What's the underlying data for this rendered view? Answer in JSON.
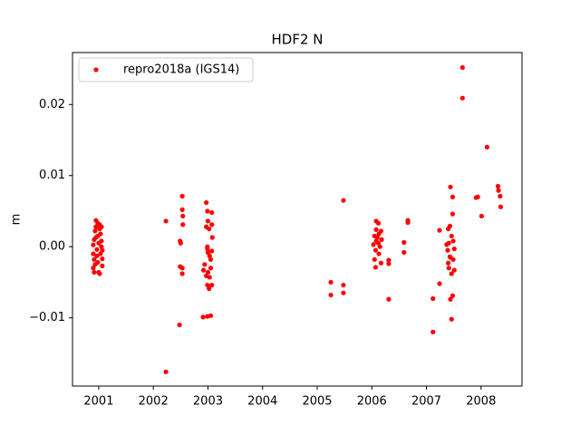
{
  "chart_data": {
    "type": "scatter",
    "title": "HDF2 N",
    "y_label": "m",
    "series": [
      {
        "name": "repro2018a (IGS14)",
        "color": "#ff0000",
        "x": [
          2000.9,
          2000.9,
          2000.917,
          2000.917,
          2000.9,
          2000.934,
          2000.934,
          2000.95,
          2000.95,
          2000.95,
          2000.967,
          2000.967,
          2000.983,
          2000.983,
          2001.0,
          2001.0,
          2001.017,
          2001.017,
          2001.033,
          2001.033,
          2001.05,
          2001.05,
          2001.05,
          2001.066,
          2001.066,
          2001.066,
          2001.017,
          2000.983,
          2000.917,
          2002.23,
          2002.23,
          2002.48,
          2002.49,
          2002.5,
          2002.49,
          2002.53,
          2002.53,
          2002.53,
          2002.54,
          2002.54,
          2002.53,
          2002.97,
          2002.99,
          2002.94,
          2002.92,
          2002.97,
          2003.0,
          2003.02,
          2002.99,
          2003.0,
          2003.03,
          2003.0,
          2003.03,
          2003.05,
          2003.07,
          2003.07,
          2003.08,
          2002.99,
          2003.02,
          2003.07,
          2002.91,
          2002.99,
          2003.05,
          2003.05,
          2002.97,
          2002.99,
          2003.07,
          2005.25,
          2005.25,
          2005.48,
          2005.48,
          2005.48,
          2006.08,
          2006.08,
          2006.07,
          2006.05,
          2006.1,
          2006.12,
          2006.15,
          2006.07,
          2006.13,
          2006.05,
          2006.17,
          2006.13,
          2006.08,
          2006.17,
          2006.12,
          2006.03,
          2006.18,
          2006.31,
          2006.31,
          2006.31,
          2006.59,
          2006.59,
          2006.66,
          2006.66,
          2007.12,
          2007.12,
          2007.24,
          2007.24,
          2007.37,
          2007.39,
          2007.4,
          2007.4,
          2007.41,
          2007.41,
          2007.43,
          2007.43,
          2007.44,
          2007.44,
          2007.46,
          2007.46,
          2007.46,
          2007.48,
          2007.48,
          2007.48,
          2007.49,
          2007.49,
          2007.51,
          2007.51,
          2007.44,
          2007.66,
          2007.66,
          2007.91,
          2007.94,
          2008.01,
          2008.11,
          2008.31,
          2008.32,
          2008.35,
          2008.36
        ],
        "values": [
          0.00025,
          -0.001,
          0.001,
          -0.0018,
          -0.003,
          -0.0025,
          0.0022,
          0.0037,
          0.0028,
          0.0013,
          -0.0004,
          -0.0013,
          0.0015,
          -0.0022,
          -0.0036,
          0.0005,
          0.0025,
          0.0031,
          0.0018,
          -0.001,
          0,
          0.0008,
          0.0028,
          -0.0005,
          -0.0017,
          -0.0027,
          -0.0038,
          0.0033,
          -0.0036,
          0.0036,
          -0.0176,
          -0.011,
          0.0008,
          0.0005,
          -0.0028,
          -0.003,
          0.0071,
          0.0052,
          0.0043,
          0.0031,
          -0.0038,
          0.0062,
          0.005,
          -0.0025,
          -0.0033,
          0.0028,
          0.0036,
          0.0025,
          0,
          -0.0008,
          -0.0013,
          -0.0036,
          -0.0043,
          -0.0018,
          0.0048,
          0.0031,
          0.0013,
          -0.0054,
          -0.0059,
          -0.0054,
          -0.0099,
          -0.0098,
          -0.0097,
          -0.003,
          -0.0041,
          -0.0003,
          -0.0006,
          -0.005,
          -0.0068,
          0.0065,
          -0.0054,
          -0.0065,
          0.0036,
          0.0024,
          -0.0029,
          0.0015,
          0.0013,
          0.0005,
          0,
          -0.0005,
          -0.001,
          -0.0018,
          0.0022,
          0.0018,
          0.0008,
          -0.0023,
          0.0033,
          0.0003,
          0.001,
          -0.0019,
          -0.0024,
          -0.0074,
          0.0006,
          -0.0008,
          0.0037,
          0.0034,
          -0.012,
          -0.0073,
          -0.0052,
          0.0023,
          0.0003,
          -0.0005,
          0.0025,
          -0.0023,
          0.0005,
          -0.003,
          0.0029,
          -0.0014,
          0.0084,
          -0.0074,
          0.0015,
          -0.0038,
          -0.0102,
          0.007,
          0.0046,
          -0.0069,
          0.0008,
          -0.0018,
          -0.0033,
          -0.0003,
          -0.0015,
          0.0252,
          0.0209,
          0.0069,
          0.007,
          0.0043,
          0.014,
          0.0085,
          0.0079,
          0.0071,
          0.0056
        ]
      }
    ],
    "xlim": [
      2000.52,
      2008.75
    ],
    "xticks": [
      2001,
      2002,
      2003,
      2004,
      2005,
      2006,
      2007,
      2008
    ],
    "ylim": [
      -0.0196,
      0.0273
    ],
    "yticks": [
      {
        "value": -0.01,
        "label": "−0.01"
      },
      {
        "value": 0,
        "label": "0.00"
      },
      {
        "value": 0.01,
        "label": "0.01"
      },
      {
        "value": 0.02,
        "label": "0.02"
      }
    ],
    "legend": "upper left",
    "grid": false
  }
}
